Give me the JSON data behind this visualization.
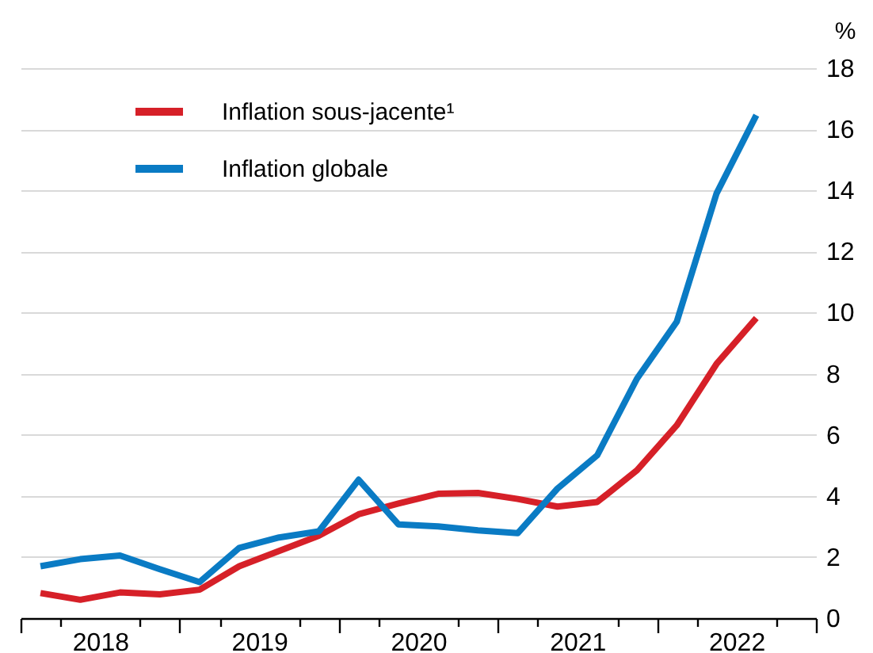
{
  "chart_data": {
    "type": "line",
    "ylabel": "%",
    "legend": "top left",
    "grid": "y",
    "line_style": "solid",
    "marker": "none",
    "x": [
      2018.125,
      2018.375,
      2018.625,
      2018.875,
      2019.125,
      2019.375,
      2019.625,
      2019.875,
      2020.125,
      2020.375,
      2020.625,
      2020.875,
      2021.125,
      2021.375,
      2021.625,
      2021.875,
      2022.125,
      2022.375,
      2022.625
    ],
    "xlim": [
      2018,
      2023
    ],
    "xticks": [
      {
        "value": 2018,
        "label": null
      },
      {
        "value": 2018.25,
        "label": null
      },
      {
        "value": 2018.5,
        "label": "2018"
      },
      {
        "value": 2018.75,
        "label": null
      },
      {
        "value": 2019,
        "label": null
      },
      {
        "value": 2019.25,
        "label": null
      },
      {
        "value": 2019.5,
        "label": "2019"
      },
      {
        "value": 2019.75,
        "label": null
      },
      {
        "value": 2020,
        "label": null
      },
      {
        "value": 2020.25,
        "label": null
      },
      {
        "value": 2020.5,
        "label": "2020"
      },
      {
        "value": 2020.75,
        "label": null
      },
      {
        "value": 2021,
        "label": null
      },
      {
        "value": 2021.25,
        "label": null
      },
      {
        "value": 2021.5,
        "label": "2021"
      },
      {
        "value": 2021.75,
        "label": null
      },
      {
        "value": 2022,
        "label": null
      },
      {
        "value": 2022.25,
        "label": null
      },
      {
        "value": 2022.5,
        "label": "2022"
      },
      {
        "value": 2022.75,
        "label": null
      },
      {
        "value": 2023,
        "label": null
      }
    ],
    "ylim": [
      0,
      18
    ],
    "yticks": [
      0,
      2,
      4,
      6,
      8,
      10,
      12,
      14,
      16,
      18
    ],
    "series": [
      {
        "name": "Inflation sous-jacente¹",
        "color": "#d62028",
        "values": [
          0.82,
          0.6,
          0.84,
          0.78,
          0.93,
          1.7,
          2.2,
          2.7,
          3.4,
          3.75,
          4.07,
          4.1,
          3.9,
          3.65,
          3.8,
          4.84,
          6.31,
          8.32,
          9.82
        ]
      },
      {
        "name": "Inflation globale",
        "color": "#0a7bc4",
        "values": [
          1.7,
          1.93,
          2.05,
          1.6,
          1.18,
          2.3,
          2.64,
          2.84,
          4.53,
          3.07,
          3.0,
          2.87,
          2.78,
          4.24,
          5.33,
          7.84,
          9.7,
          13.9,
          16.46
        ]
      }
    ]
  }
}
